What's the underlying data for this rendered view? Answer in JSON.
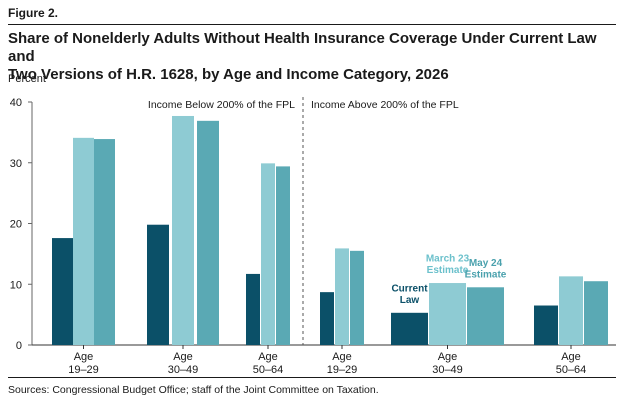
{
  "figure_label": "Figure 2.",
  "title_line1": "Share of Nonelderly Adults Without Health Insurance Coverage Under Current Law and",
  "title_line2": "Two Versions of H.R. 1628, by Age and Income Category, 2026",
  "sources": "Sources: Congressional Budget Office; staff of the Joint Committee on Taxation.",
  "colors": {
    "current_law": "#0b5068",
    "march": "#8ecbd3",
    "may": "#5aa9b4",
    "text": "#1a1a1a",
    "legend_march": "#6cc1cc",
    "legend_may": "#4aa1ad"
  },
  "chart_data": {
    "type": "bar",
    "ylabel": "Percent",
    "ylim": [
      0,
      40
    ],
    "yticks": [
      0,
      10,
      20,
      30,
      40
    ],
    "panel_labels": [
      "Income Below 200% of the FPL",
      "Income Above 200% of the FPL"
    ],
    "categories": [
      {
        "line1": "Age",
        "line2": "19–29"
      },
      {
        "line1": "Age",
        "line2": "30–49"
      },
      {
        "line1": "Age",
        "line2": "50–64"
      },
      {
        "line1": "Age",
        "line2": "19–29"
      },
      {
        "line1": "Age",
        "line2": "30–49"
      },
      {
        "line1": "Age",
        "line2": "50–64"
      }
    ],
    "series": [
      {
        "name_lines": [
          "Current",
          "Law"
        ],
        "values": [
          17.6,
          19.8,
          11.7,
          8.7,
          5.3,
          6.5
        ]
      },
      {
        "name_lines": [
          "March 23",
          "Estimate"
        ],
        "values": [
          34.1,
          37.7,
          29.9,
          15.9,
          10.2,
          11.3
        ]
      },
      {
        "name_lines": [
          "May 24",
          "Estimate"
        ],
        "values": [
          33.9,
          36.9,
          29.4,
          15.5,
          9.5,
          10.5
        ]
      }
    ]
  }
}
